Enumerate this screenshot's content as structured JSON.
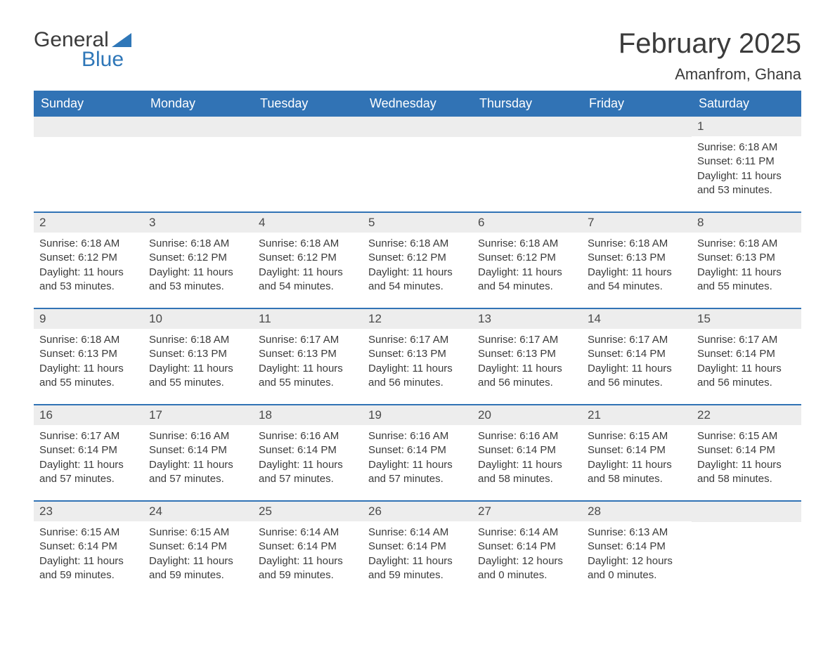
{
  "brand": {
    "word1": "General",
    "word2": "Blue"
  },
  "title": "February 2025",
  "location": "Amanfrom, Ghana",
  "colors": {
    "header_bg": "#3173b5",
    "header_text": "#ffffff",
    "daynum_bg": "#ededed",
    "border_top": "#3173b5",
    "text": "#3b3b3b",
    "logo_accent": "#2f77b8"
  },
  "days_of_week": [
    "Sunday",
    "Monday",
    "Tuesday",
    "Wednesday",
    "Thursday",
    "Friday",
    "Saturday"
  ],
  "grid": [
    [
      null,
      null,
      null,
      null,
      null,
      null,
      {
        "n": "1",
        "sunrise": "Sunrise: 6:18 AM",
        "sunset": "Sunset: 6:11 PM",
        "daylight1": "Daylight: 11 hours",
        "daylight2": "and 53 minutes."
      }
    ],
    [
      {
        "n": "2",
        "sunrise": "Sunrise: 6:18 AM",
        "sunset": "Sunset: 6:12 PM",
        "daylight1": "Daylight: 11 hours",
        "daylight2": "and 53 minutes."
      },
      {
        "n": "3",
        "sunrise": "Sunrise: 6:18 AM",
        "sunset": "Sunset: 6:12 PM",
        "daylight1": "Daylight: 11 hours",
        "daylight2": "and 53 minutes."
      },
      {
        "n": "4",
        "sunrise": "Sunrise: 6:18 AM",
        "sunset": "Sunset: 6:12 PM",
        "daylight1": "Daylight: 11 hours",
        "daylight2": "and 54 minutes."
      },
      {
        "n": "5",
        "sunrise": "Sunrise: 6:18 AM",
        "sunset": "Sunset: 6:12 PM",
        "daylight1": "Daylight: 11 hours",
        "daylight2": "and 54 minutes."
      },
      {
        "n": "6",
        "sunrise": "Sunrise: 6:18 AM",
        "sunset": "Sunset: 6:12 PM",
        "daylight1": "Daylight: 11 hours",
        "daylight2": "and 54 minutes."
      },
      {
        "n": "7",
        "sunrise": "Sunrise: 6:18 AM",
        "sunset": "Sunset: 6:13 PM",
        "daylight1": "Daylight: 11 hours",
        "daylight2": "and 54 minutes."
      },
      {
        "n": "8",
        "sunrise": "Sunrise: 6:18 AM",
        "sunset": "Sunset: 6:13 PM",
        "daylight1": "Daylight: 11 hours",
        "daylight2": "and 55 minutes."
      }
    ],
    [
      {
        "n": "9",
        "sunrise": "Sunrise: 6:18 AM",
        "sunset": "Sunset: 6:13 PM",
        "daylight1": "Daylight: 11 hours",
        "daylight2": "and 55 minutes."
      },
      {
        "n": "10",
        "sunrise": "Sunrise: 6:18 AM",
        "sunset": "Sunset: 6:13 PM",
        "daylight1": "Daylight: 11 hours",
        "daylight2": "and 55 minutes."
      },
      {
        "n": "11",
        "sunrise": "Sunrise: 6:17 AM",
        "sunset": "Sunset: 6:13 PM",
        "daylight1": "Daylight: 11 hours",
        "daylight2": "and 55 minutes."
      },
      {
        "n": "12",
        "sunrise": "Sunrise: 6:17 AM",
        "sunset": "Sunset: 6:13 PM",
        "daylight1": "Daylight: 11 hours",
        "daylight2": "and 56 minutes."
      },
      {
        "n": "13",
        "sunrise": "Sunrise: 6:17 AM",
        "sunset": "Sunset: 6:13 PM",
        "daylight1": "Daylight: 11 hours",
        "daylight2": "and 56 minutes."
      },
      {
        "n": "14",
        "sunrise": "Sunrise: 6:17 AM",
        "sunset": "Sunset: 6:14 PM",
        "daylight1": "Daylight: 11 hours",
        "daylight2": "and 56 minutes."
      },
      {
        "n": "15",
        "sunrise": "Sunrise: 6:17 AM",
        "sunset": "Sunset: 6:14 PM",
        "daylight1": "Daylight: 11 hours",
        "daylight2": "and 56 minutes."
      }
    ],
    [
      {
        "n": "16",
        "sunrise": "Sunrise: 6:17 AM",
        "sunset": "Sunset: 6:14 PM",
        "daylight1": "Daylight: 11 hours",
        "daylight2": "and 57 minutes."
      },
      {
        "n": "17",
        "sunrise": "Sunrise: 6:16 AM",
        "sunset": "Sunset: 6:14 PM",
        "daylight1": "Daylight: 11 hours",
        "daylight2": "and 57 minutes."
      },
      {
        "n": "18",
        "sunrise": "Sunrise: 6:16 AM",
        "sunset": "Sunset: 6:14 PM",
        "daylight1": "Daylight: 11 hours",
        "daylight2": "and 57 minutes."
      },
      {
        "n": "19",
        "sunrise": "Sunrise: 6:16 AM",
        "sunset": "Sunset: 6:14 PM",
        "daylight1": "Daylight: 11 hours",
        "daylight2": "and 57 minutes."
      },
      {
        "n": "20",
        "sunrise": "Sunrise: 6:16 AM",
        "sunset": "Sunset: 6:14 PM",
        "daylight1": "Daylight: 11 hours",
        "daylight2": "and 58 minutes."
      },
      {
        "n": "21",
        "sunrise": "Sunrise: 6:15 AM",
        "sunset": "Sunset: 6:14 PM",
        "daylight1": "Daylight: 11 hours",
        "daylight2": "and 58 minutes."
      },
      {
        "n": "22",
        "sunrise": "Sunrise: 6:15 AM",
        "sunset": "Sunset: 6:14 PM",
        "daylight1": "Daylight: 11 hours",
        "daylight2": "and 58 minutes."
      }
    ],
    [
      {
        "n": "23",
        "sunrise": "Sunrise: 6:15 AM",
        "sunset": "Sunset: 6:14 PM",
        "daylight1": "Daylight: 11 hours",
        "daylight2": "and 59 minutes."
      },
      {
        "n": "24",
        "sunrise": "Sunrise: 6:15 AM",
        "sunset": "Sunset: 6:14 PM",
        "daylight1": "Daylight: 11 hours",
        "daylight2": "and 59 minutes."
      },
      {
        "n": "25",
        "sunrise": "Sunrise: 6:14 AM",
        "sunset": "Sunset: 6:14 PM",
        "daylight1": "Daylight: 11 hours",
        "daylight2": "and 59 minutes."
      },
      {
        "n": "26",
        "sunrise": "Sunrise: 6:14 AM",
        "sunset": "Sunset: 6:14 PM",
        "daylight1": "Daylight: 11 hours",
        "daylight2": "and 59 minutes."
      },
      {
        "n": "27",
        "sunrise": "Sunrise: 6:14 AM",
        "sunset": "Sunset: 6:14 PM",
        "daylight1": "Daylight: 12 hours",
        "daylight2": "and 0 minutes."
      },
      {
        "n": "28",
        "sunrise": "Sunrise: 6:13 AM",
        "sunset": "Sunset: 6:14 PM",
        "daylight1": "Daylight: 12 hours",
        "daylight2": "and 0 minutes."
      },
      null
    ]
  ]
}
